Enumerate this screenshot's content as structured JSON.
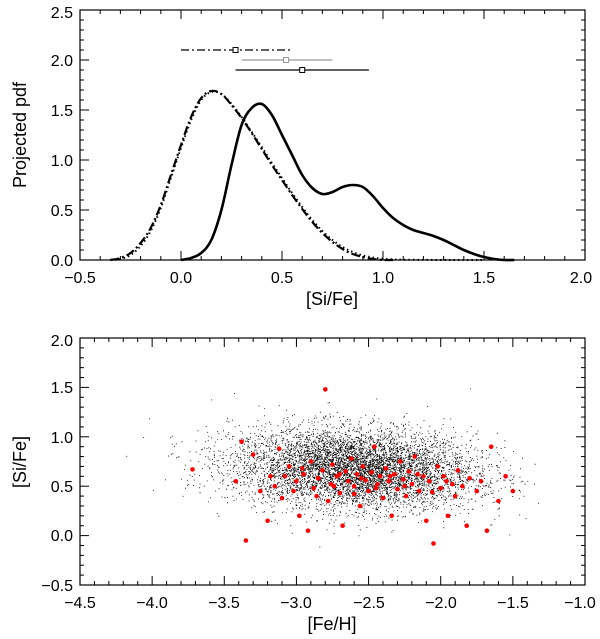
{
  "chart_data": [
    {
      "type": "line",
      "title": "",
      "xlabel": "[Si/Fe]",
      "ylabel": "Projected pdf",
      "xlim": [
        -0.5,
        2.0
      ],
      "ylim": [
        0.0,
        2.5
      ],
      "xticks": [
        "−0.5",
        "0.0",
        "0.5",
        "1.0",
        "1.5",
        "2.0"
      ],
      "yticks": [
        "0.0",
        "0.5",
        "1.0",
        "1.5",
        "2.0",
        "2.5"
      ],
      "series": [
        {
          "name": "solid",
          "style": "solid",
          "x": [
            0.0,
            0.05,
            0.1,
            0.15,
            0.2,
            0.25,
            0.3,
            0.35,
            0.4,
            0.45,
            0.5,
            0.55,
            0.6,
            0.65,
            0.7,
            0.75,
            0.8,
            0.85,
            0.9,
            0.95,
            1.0,
            1.05,
            1.1,
            1.15,
            1.2,
            1.25,
            1.3,
            1.35,
            1.4,
            1.45,
            1.5,
            1.55,
            1.6,
            1.65
          ],
          "y": [
            0.0,
            0.02,
            0.07,
            0.2,
            0.5,
            0.95,
            1.35,
            1.52,
            1.56,
            1.45,
            1.25,
            1.05,
            0.85,
            0.72,
            0.66,
            0.68,
            0.73,
            0.75,
            0.73,
            0.64,
            0.52,
            0.42,
            0.35,
            0.3,
            0.27,
            0.24,
            0.2,
            0.15,
            0.1,
            0.06,
            0.03,
            0.01,
            0.0,
            0.0
          ]
        },
        {
          "name": "dash-dot",
          "style": "dashdot",
          "x": [
            -0.35,
            -0.3,
            -0.25,
            -0.2,
            -0.15,
            -0.1,
            -0.05,
            0.0,
            0.05,
            0.1,
            0.15,
            0.2,
            0.25,
            0.3,
            0.35,
            0.4,
            0.45,
            0.5,
            0.55,
            0.6,
            0.65,
            0.7,
            0.75,
            0.8,
            0.85,
            0.9,
            0.95,
            1.0,
            1.05
          ],
          "y": [
            0.0,
            0.02,
            0.07,
            0.17,
            0.32,
            0.55,
            0.85,
            1.15,
            1.43,
            1.62,
            1.69,
            1.66,
            1.55,
            1.42,
            1.27,
            1.11,
            0.95,
            0.8,
            0.65,
            0.51,
            0.38,
            0.27,
            0.18,
            0.11,
            0.06,
            0.03,
            0.01,
            0.0,
            0.0
          ]
        },
        {
          "name": "dotted",
          "style": "dotted",
          "x": [
            -0.35,
            -0.3,
            -0.25,
            -0.2,
            -0.15,
            -0.1,
            -0.05,
            0.0,
            0.05,
            0.1,
            0.15,
            0.2,
            0.25,
            0.3,
            0.35,
            0.4,
            0.45,
            0.5,
            0.55,
            0.6,
            0.65,
            0.7,
            0.75,
            0.8,
            0.85,
            0.9,
            0.95,
            1.0,
            1.05,
            1.1,
            1.2,
            1.3,
            1.4,
            1.5
          ],
          "y": [
            0.0,
            0.01,
            0.05,
            0.14,
            0.29,
            0.52,
            0.82,
            1.12,
            1.4,
            1.6,
            1.68,
            1.66,
            1.56,
            1.43,
            1.28,
            1.13,
            0.97,
            0.82,
            0.67,
            0.53,
            0.4,
            0.29,
            0.2,
            0.13,
            0.08,
            0.045,
            0.025,
            0.012,
            0.006,
            0.003,
            0.001,
            0.0,
            0.0,
            0.0
          ]
        }
      ],
      "error_bars": [
        {
          "name": "dash-dot",
          "center": 0.27,
          "y": 2.1,
          "low": 0.0,
          "high": 0.55,
          "style": "dashdot",
          "color": "#000000"
        },
        {
          "name": "gray",
          "center": 0.52,
          "y": 2.0,
          "low": 0.3,
          "high": 0.75,
          "style": "solid",
          "color": "#999999"
        },
        {
          "name": "solid",
          "center": 0.6,
          "y": 1.9,
          "low": 0.27,
          "high": 0.93,
          "style": "solid",
          "color": "#000000"
        }
      ]
    },
    {
      "type": "scatter",
      "title": "",
      "xlabel": "[Fe/H]",
      "ylabel": "[Si/Fe]",
      "xlim": [
        -4.5,
        -1.0
      ],
      "ylim": [
        -0.5,
        2.0
      ],
      "xticks": [
        "−4.5",
        "−4.0",
        "−3.5",
        "−3.0",
        "−2.5",
        "−2.0",
        "−1.5",
        "−1.0"
      ],
      "yticks": [
        "−0.5",
        "0.0",
        "0.5",
        "1.0",
        "1.5",
        "2.0"
      ],
      "background_cloud": {
        "name": "model-stars",
        "color": "#000000",
        "center": [
          -2.6,
          0.68
        ],
        "extent_x": [
          -4.4,
          -1.3
        ],
        "extent_y": [
          -0.35,
          1.6
        ]
      },
      "series": [
        {
          "name": "observed-stars",
          "color": "#ff0000",
          "points": [
            [
              -3.72,
              0.67
            ],
            [
              -3.42,
              0.55
            ],
            [
              -3.38,
              0.95
            ],
            [
              -3.35,
              -0.05
            ],
            [
              -3.3,
              0.82
            ],
            [
              -3.25,
              0.45
            ],
            [
              -3.2,
              0.15
            ],
            [
              -3.18,
              0.6
            ],
            [
              -3.12,
              0.88
            ],
            [
              -3.1,
              0.38
            ],
            [
              -3.05,
              0.7
            ],
            [
              -3.0,
              0.55
            ],
            [
              -2.98,
              0.2
            ],
            [
              -2.95,
              0.62
            ],
            [
              -2.92,
              0.05
            ],
            [
              -2.9,
              0.75
            ],
            [
              -2.88,
              0.48
            ],
            [
              -2.85,
              0.58
            ],
            [
              -2.82,
              0.66
            ],
            [
              -2.8,
              1.48
            ],
            [
              -2.78,
              0.35
            ],
            [
              -2.76,
              0.52
            ],
            [
              -2.75,
              0.72
            ],
            [
              -2.72,
              0.6
            ],
            [
              -2.7,
              0.43
            ],
            [
              -2.68,
              0.1
            ],
            [
              -2.66,
              0.65
            ],
            [
              -2.64,
              0.55
            ],
            [
              -2.62,
              0.78
            ],
            [
              -2.6,
              0.5
            ],
            [
              -2.58,
              0.62
            ],
            [
              -2.56,
              0.3
            ],
            [
              -2.54,
              0.7
            ],
            [
              -2.52,
              0.56
            ],
            [
              -2.5,
              0.45
            ],
            [
              -2.48,
              0.64
            ],
            [
              -2.46,
              0.9
            ],
            [
              -2.44,
              0.52
            ],
            [
              -2.42,
              0.6
            ],
            [
              -2.4,
              0.38
            ],
            [
              -2.38,
              0.68
            ],
            [
              -2.36,
              0.55
            ],
            [
              -2.34,
              0.2
            ],
            [
              -2.32,
              0.62
            ],
            [
              -2.3,
              0.47
            ],
            [
              -2.28,
              0.75
            ],
            [
              -2.26,
              0.57
            ],
            [
              -2.24,
              0.4
            ],
            [
              -2.22,
              0.65
            ],
            [
              -2.2,
              0.52
            ],
            [
              -2.18,
              0.8
            ],
            [
              -2.15,
              0.45
            ],
            [
              -2.12,
              0.6
            ],
            [
              -2.1,
              0.15
            ],
            [
              -2.08,
              0.55
            ],
            [
              -2.05,
              -0.08
            ],
            [
              -2.02,
              0.7
            ],
            [
              -2.0,
              0.48
            ],
            [
              -1.98,
              0.6
            ],
            [
              -1.95,
              0.2
            ],
            [
              -1.92,
              0.52
            ],
            [
              -1.9,
              0.4
            ],
            [
              -1.88,
              0.66
            ],
            [
              -1.85,
              0.5
            ],
            [
              -1.82,
              0.1
            ],
            [
              -1.8,
              0.58
            ],
            [
              -1.75,
              0.45
            ],
            [
              -1.72,
              0.55
            ],
            [
              -1.68,
              0.05
            ],
            [
              -1.65,
              0.9
            ],
            [
              -1.6,
              0.35
            ],
            [
              -1.55,
              0.6
            ],
            [
              -1.5,
              0.45
            ],
            [
              -3.15,
              0.5
            ],
            [
              -3.08,
              0.6
            ],
            [
              -3.02,
              0.45
            ],
            [
              -2.96,
              0.68
            ],
            [
              -2.86,
              0.4
            ],
            [
              -2.74,
              0.5
            ],
            [
              -2.7,
              0.62
            ],
            [
              -2.6,
              0.42
            ],
            [
              -2.55,
              0.58
            ],
            [
              -2.45,
              0.48
            ],
            [
              -2.35,
              0.6
            ],
            [
              -2.25,
              0.5
            ],
            [
              -2.16,
              0.62
            ],
            [
              -2.06,
              0.44
            ],
            [
              -1.96,
              0.55
            ]
          ]
        }
      ]
    }
  ]
}
